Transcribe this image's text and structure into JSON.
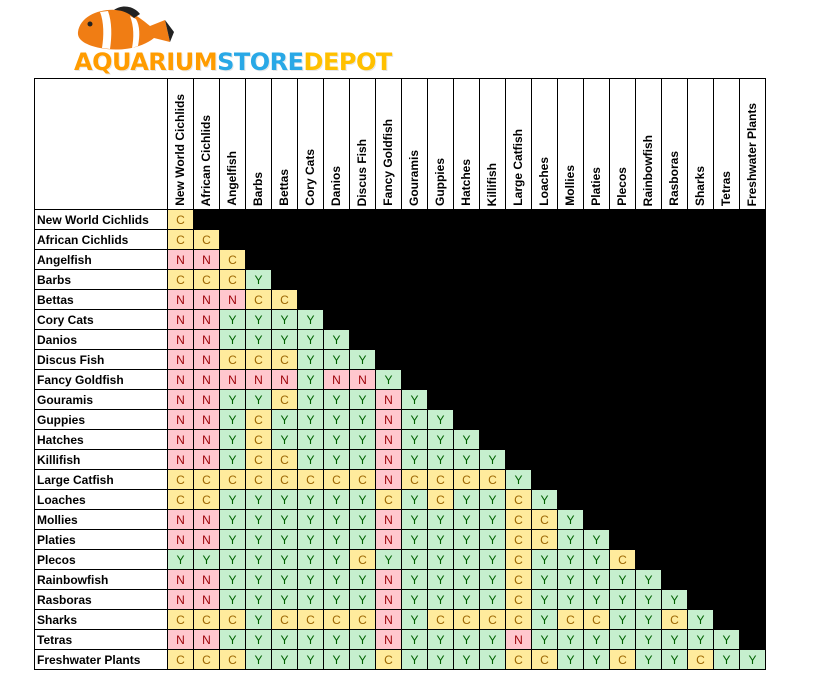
{
  "logo": {
    "text_parts": [
      "AQUARIUM",
      "STORE",
      "DEPOT"
    ],
    "icon": "clownfish-icon"
  },
  "chart_data": {
    "type": "table",
    "title": "",
    "columns": [
      "New World Cichlids",
      "African Cichlids",
      "Angelfish",
      "Barbs",
      "Bettas",
      "Cory Cats",
      "Danios",
      "Discus Fish",
      "Fancy Goldfish",
      "Gouramis",
      "Guppies",
      "Hatches",
      "Killifish",
      "Large Catfish",
      "Loaches",
      "Mollies",
      "Platies",
      "Plecos",
      "Rainbowfish",
      "Rasboras",
      "Sharks",
      "Tetras",
      "Freshwater Plants"
    ],
    "rows": [
      {
        "label": "New World Cichlids",
        "values": [
          "C"
        ]
      },
      {
        "label": "African Cichlids",
        "values": [
          "C",
          "C"
        ]
      },
      {
        "label": "Angelfish",
        "values": [
          "N",
          "N",
          "C"
        ]
      },
      {
        "label": "Barbs",
        "values": [
          "C",
          "C",
          "C",
          "Y"
        ]
      },
      {
        "label": "Bettas",
        "values": [
          "N",
          "N",
          "N",
          "C",
          "C"
        ]
      },
      {
        "label": "Cory Cats",
        "values": [
          "N",
          "N",
          "Y",
          "Y",
          "Y",
          "Y"
        ]
      },
      {
        "label": "Danios",
        "values": [
          "N",
          "N",
          "Y",
          "Y",
          "Y",
          "Y",
          "Y"
        ]
      },
      {
        "label": "Discus Fish",
        "values": [
          "N",
          "N",
          "C",
          "C",
          "C",
          "Y",
          "Y",
          "Y"
        ]
      },
      {
        "label": "Fancy Goldfish",
        "values": [
          "N",
          "N",
          "N",
          "N",
          "N",
          "Y",
          "N",
          "N",
          "Y"
        ]
      },
      {
        "label": "Gouramis",
        "values": [
          "N",
          "N",
          "Y",
          "Y",
          "C",
          "Y",
          "Y",
          "Y",
          "N",
          "Y"
        ]
      },
      {
        "label": "Guppies",
        "values": [
          "N",
          "N",
          "Y",
          "C",
          "Y",
          "Y",
          "Y",
          "Y",
          "N",
          "Y",
          "Y"
        ]
      },
      {
        "label": "Hatches",
        "values": [
          "N",
          "N",
          "Y",
          "C",
          "Y",
          "Y",
          "Y",
          "Y",
          "N",
          "Y",
          "Y",
          "Y"
        ]
      },
      {
        "label": "Killifish",
        "values": [
          "N",
          "N",
          "Y",
          "C",
          "C",
          "Y",
          "Y",
          "Y",
          "N",
          "Y",
          "Y",
          "Y",
          "Y"
        ]
      },
      {
        "label": "Large Catfish",
        "values": [
          "C",
          "C",
          "C",
          "C",
          "C",
          "C",
          "C",
          "C",
          "N",
          "C",
          "C",
          "C",
          "C",
          "Y"
        ]
      },
      {
        "label": "Loaches",
        "values": [
          "C",
          "C",
          "Y",
          "Y",
          "Y",
          "Y",
          "Y",
          "Y",
          "C",
          "Y",
          "C",
          "Y",
          "Y",
          "C",
          "Y"
        ]
      },
      {
        "label": "Mollies",
        "values": [
          "N",
          "N",
          "Y",
          "Y",
          "Y",
          "Y",
          "Y",
          "Y",
          "N",
          "Y",
          "Y",
          "Y",
          "Y",
          "C",
          "C",
          "Y"
        ]
      },
      {
        "label": "Platies",
        "values": [
          "N",
          "N",
          "Y",
          "Y",
          "Y",
          "Y",
          "Y",
          "Y",
          "N",
          "Y",
          "Y",
          "Y",
          "Y",
          "C",
          "C",
          "Y",
          "Y"
        ]
      },
      {
        "label": "Plecos",
        "values": [
          "Y",
          "Y",
          "Y",
          "Y",
          "Y",
          "Y",
          "Y",
          "C",
          "Y",
          "Y",
          "Y",
          "Y",
          "Y",
          "C",
          "Y",
          "Y",
          "Y",
          "C"
        ]
      },
      {
        "label": "Rainbowfish",
        "values": [
          "N",
          "N",
          "Y",
          "Y",
          "Y",
          "Y",
          "Y",
          "Y",
          "N",
          "Y",
          "Y",
          "Y",
          "Y",
          "C",
          "Y",
          "Y",
          "Y",
          "Y",
          "Y"
        ]
      },
      {
        "label": "Rasboras",
        "values": [
          "N",
          "N",
          "Y",
          "Y",
          "Y",
          "Y",
          "Y",
          "Y",
          "N",
          "Y",
          "Y",
          "Y",
          "Y",
          "C",
          "Y",
          "Y",
          "Y",
          "Y",
          "Y",
          "Y"
        ]
      },
      {
        "label": "Sharks",
        "values": [
          "C",
          "C",
          "C",
          "Y",
          "C",
          "C",
          "C",
          "C",
          "N",
          "Y",
          "C",
          "C",
          "C",
          "C",
          "Y",
          "C",
          "C",
          "Y",
          "Y",
          "C",
          "Y"
        ]
      },
      {
        "label": "Tetras",
        "values": [
          "N",
          "N",
          "Y",
          "Y",
          "Y",
          "Y",
          "Y",
          "Y",
          "N",
          "Y",
          "Y",
          "Y",
          "Y",
          "N",
          "Y",
          "Y",
          "Y",
          "Y",
          "Y",
          "Y",
          "Y",
          "Y"
        ]
      },
      {
        "label": "Freshwater Plants",
        "values": [
          "C",
          "C",
          "C",
          "Y",
          "Y",
          "Y",
          "Y",
          "Y",
          "C",
          "Y",
          "Y",
          "Y",
          "Y",
          "C",
          "C",
          "Y",
          "Y",
          "C",
          "Y",
          "Y",
          "C",
          "Y",
          "Y"
        ]
      }
    ],
    "legend_colors": {
      "Y": "#c6efce",
      "C": "#ffeb9c",
      "N": "#ffc7ce"
    },
    "empty_cell_color": "#000000"
  }
}
